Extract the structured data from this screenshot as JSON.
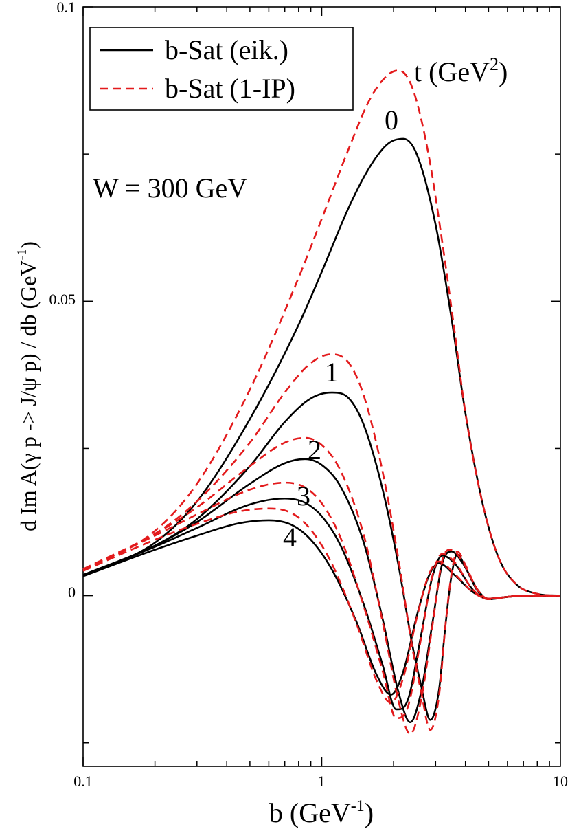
{
  "chart_data": {
    "type": "line",
    "title": "",
    "xlabel": "b  (GeV",
    "xlabel_sup": "-1",
    "xlabel_close": ")",
    "ylabel": "d Im A(γ p -> J/ψ p) / db  (GeV",
    "ylabel_sup": "-1",
    "ylabel_close": ")",
    "xscale": "log",
    "xlim": [
      0.1,
      10
    ],
    "ylim": [
      -0.029,
      0.1
    ],
    "x_ticks": [
      0.1,
      1,
      10
    ],
    "x_tick_labels": [
      "0.1",
      "1",
      "10"
    ],
    "y_ticks": [
      0,
      0.05,
      0.1
    ],
    "y_tick_labels": [
      "0",
      "0.05",
      "0.1"
    ],
    "annotation": "W = 300 GeV",
    "t_header": "t  (GeV",
    "t_header_sup": "2",
    "t_header_close": ")",
    "legend": {
      "position": "top-left",
      "entries": [
        {
          "label": "b-Sat (eik.)",
          "color": "#000000",
          "style": "solid"
        },
        {
          "label": "b-Sat (1-IP)",
          "color": "#e31a1c",
          "style": "dashed"
        }
      ]
    },
    "curve_labels": [
      "0",
      "1",
      "2",
      "3",
      "4"
    ],
    "series": [
      {
        "name": "b-Sat (eik.), t=0",
        "t": 0,
        "style": "solid",
        "color": "#000000",
        "points": [
          [
            0.1,
            0.0034
          ],
          [
            0.2,
            0.009
          ],
          [
            0.3,
            0.016
          ],
          [
            0.5,
            0.03
          ],
          [
            0.8,
            0.046
          ],
          [
            1.0,
            0.055
          ],
          [
            1.3,
            0.066
          ],
          [
            1.6,
            0.073
          ],
          [
            1.9,
            0.0768
          ],
          [
            2.2,
            0.0776
          ],
          [
            2.5,
            0.075
          ],
          [
            3.0,
            0.063
          ],
          [
            3.5,
            0.047
          ],
          [
            4.0,
            0.031
          ],
          [
            4.7,
            0.016
          ],
          [
            5.5,
            0.0065
          ],
          [
            6.5,
            0.002
          ],
          [
            8.0,
            0.0003
          ],
          [
            10,
            0.0
          ]
        ]
      },
      {
        "name": "b-Sat (1-IP), t=0",
        "t": 0,
        "style": "dashed",
        "color": "#e31a1c",
        "points": [
          [
            0.1,
            0.0042
          ],
          [
            0.2,
            0.011
          ],
          [
            0.3,
            0.019
          ],
          [
            0.5,
            0.035
          ],
          [
            0.8,
            0.054
          ],
          [
            1.0,
            0.064
          ],
          [
            1.3,
            0.076
          ],
          [
            1.6,
            0.0845
          ],
          [
            1.9,
            0.0885
          ],
          [
            2.1,
            0.0892
          ],
          [
            2.4,
            0.0862
          ],
          [
            2.8,
            0.075
          ],
          [
            3.2,
            0.06
          ],
          [
            3.6,
            0.045
          ],
          [
            4.0,
            0.031
          ],
          [
            4.7,
            0.016
          ],
          [
            5.5,
            0.0065
          ],
          [
            6.5,
            0.002
          ],
          [
            8.0,
            0.0003
          ],
          [
            10,
            0.0
          ]
        ]
      },
      {
        "name": "b-Sat (eik.), t=1",
        "t": 1,
        "style": "solid",
        "color": "#000000",
        "points": [
          [
            0.1,
            0.0035
          ],
          [
            0.2,
            0.0085
          ],
          [
            0.3,
            0.013
          ],
          [
            0.5,
            0.022
          ],
          [
            0.7,
            0.0295
          ],
          [
            0.9,
            0.0335
          ],
          [
            1.1,
            0.0345
          ],
          [
            1.3,
            0.0335
          ],
          [
            1.5,
            0.029
          ],
          [
            1.8,
            0.018
          ],
          [
            2.1,
            0.005
          ],
          [
            2.4,
            -0.0085
          ],
          [
            2.6,
            -0.015
          ],
          [
            2.85,
            -0.0211
          ],
          [
            3.1,
            -0.016
          ],
          [
            3.3,
            -0.005
          ],
          [
            3.5,
            0.0035
          ],
          [
            3.7,
            0.007
          ],
          [
            4.0,
            0.0048
          ],
          [
            4.5,
            0.0008
          ],
          [
            5.0,
            -0.0005
          ],
          [
            6.0,
            -0.0002
          ],
          [
            7.0,
            0.0
          ],
          [
            10,
            0.0
          ]
        ]
      },
      {
        "name": "b-Sat (1-IP), t=1",
        "t": 1,
        "style": "dashed",
        "color": "#e31a1c",
        "points": [
          [
            0.1,
            0.0045
          ],
          [
            0.2,
            0.0105
          ],
          [
            0.3,
            0.016
          ],
          [
            0.5,
            0.026
          ],
          [
            0.7,
            0.0345
          ],
          [
            0.9,
            0.0395
          ],
          [
            1.1,
            0.041
          ],
          [
            1.3,
            0.0395
          ],
          [
            1.5,
            0.034
          ],
          [
            1.8,
            0.021
          ],
          [
            2.1,
            0.006
          ],
          [
            2.4,
            -0.009
          ],
          [
            2.6,
            -0.016
          ],
          [
            2.85,
            -0.0228
          ],
          [
            3.1,
            -0.017
          ],
          [
            3.3,
            -0.005
          ],
          [
            3.5,
            0.0038
          ],
          [
            3.7,
            0.0075
          ],
          [
            4.0,
            0.0052
          ],
          [
            4.5,
            0.0009
          ],
          [
            5.0,
            -0.0005
          ],
          [
            6.0,
            -0.0002
          ],
          [
            7.0,
            0.0
          ],
          [
            10,
            0.0
          ]
        ]
      },
      {
        "name": "b-Sat (eik.), t=2",
        "t": 2,
        "style": "solid",
        "color": "#000000",
        "points": [
          [
            0.1,
            0.0035
          ],
          [
            0.2,
            0.0085
          ],
          [
            0.3,
            0.0125
          ],
          [
            0.5,
            0.019
          ],
          [
            0.7,
            0.0225
          ],
          [
            0.85,
            0.0232
          ],
          [
            1.0,
            0.0222
          ],
          [
            1.2,
            0.0185
          ],
          [
            1.5,
            0.009
          ],
          [
            1.8,
            -0.004
          ],
          [
            2.1,
            -0.0165
          ],
          [
            2.35,
            -0.0215
          ],
          [
            2.6,
            -0.0166
          ],
          [
            2.9,
            -0.005
          ],
          [
            3.2,
            0.0055
          ],
          [
            3.5,
            0.0075
          ],
          [
            3.9,
            0.0055
          ],
          [
            4.5,
            0.001
          ],
          [
            5.0,
            -0.0006
          ],
          [
            6.0,
            -0.0002
          ],
          [
            7.0,
            0.0
          ],
          [
            10,
            0.0
          ]
        ]
      },
      {
        "name": "b-Sat (1-IP), t=2",
        "t": 2,
        "style": "dashed",
        "color": "#e31a1c",
        "points": [
          [
            0.1,
            0.0045
          ],
          [
            0.2,
            0.0105
          ],
          [
            0.3,
            0.015
          ],
          [
            0.5,
            0.022
          ],
          [
            0.7,
            0.026
          ],
          [
            0.85,
            0.0268
          ],
          [
            1.0,
            0.0256
          ],
          [
            1.2,
            0.0212
          ],
          [
            1.5,
            0.0103
          ],
          [
            1.8,
            -0.0045
          ],
          [
            2.1,
            -0.018
          ],
          [
            2.35,
            -0.0235
          ],
          [
            2.6,
            -0.018
          ],
          [
            2.9,
            -0.0055
          ],
          [
            3.2,
            0.006
          ],
          [
            3.5,
            0.0078
          ],
          [
            3.9,
            0.0057
          ],
          [
            4.5,
            0.001
          ],
          [
            5.0,
            -0.0006
          ],
          [
            6.0,
            -0.0002
          ],
          [
            7.0,
            0.0
          ],
          [
            10,
            0.0
          ]
        ]
      },
      {
        "name": "b-Sat (eik.), t=3",
        "t": 3,
        "style": "solid",
        "color": "#000000",
        "points": [
          [
            0.1,
            0.0034
          ],
          [
            0.2,
            0.0083
          ],
          [
            0.3,
            0.0115
          ],
          [
            0.5,
            0.0155
          ],
          [
            0.7,
            0.0165
          ],
          [
            0.85,
            0.0158
          ],
          [
            1.0,
            0.0135
          ],
          [
            1.2,
            0.0085
          ],
          [
            1.5,
            -0.0015
          ],
          [
            1.8,
            -0.0118
          ],
          [
            2.05,
            -0.0193
          ],
          [
            2.3,
            -0.0176
          ],
          [
            2.6,
            -0.007
          ],
          [
            2.9,
            0.003
          ],
          [
            3.2,
            0.0068
          ],
          [
            3.6,
            0.0055
          ],
          [
            4.3,
            0.001
          ],
          [
            5.0,
            -0.0006
          ],
          [
            6.0,
            -0.0002
          ],
          [
            7.0,
            0.0
          ],
          [
            10,
            0.0
          ]
        ]
      },
      {
        "name": "b-Sat (1-IP), t=3",
        "t": 3,
        "style": "dashed",
        "color": "#e31a1c",
        "points": [
          [
            0.1,
            0.0044
          ],
          [
            0.2,
            0.0102
          ],
          [
            0.3,
            0.0138
          ],
          [
            0.5,
            0.018
          ],
          [
            0.7,
            0.0192
          ],
          [
            0.85,
            0.0184
          ],
          [
            1.0,
            0.0157
          ],
          [
            1.2,
            0.0098
          ],
          [
            1.5,
            -0.0018
          ],
          [
            1.8,
            -0.0128
          ],
          [
            2.05,
            -0.0208
          ],
          [
            2.3,
            -0.0188
          ],
          [
            2.6,
            -0.0075
          ],
          [
            2.9,
            0.0032
          ],
          [
            3.2,
            0.0071
          ],
          [
            3.6,
            0.0057
          ],
          [
            4.3,
            0.001
          ],
          [
            5.0,
            -0.0006
          ],
          [
            6.0,
            -0.0002
          ],
          [
            7.0,
            0.0
          ],
          [
            10,
            0.0
          ]
        ]
      },
      {
        "name": "b-Sat (eik.), t=4",
        "t": 4,
        "style": "solid",
        "color": "#000000",
        "points": [
          [
            0.1,
            0.0033
          ],
          [
            0.2,
            0.0078
          ],
          [
            0.3,
            0.0102
          ],
          [
            0.45,
            0.0123
          ],
          [
            0.6,
            0.0128
          ],
          [
            0.75,
            0.012
          ],
          [
            0.9,
            0.0095
          ],
          [
            1.1,
            0.0045
          ],
          [
            1.4,
            -0.0045
          ],
          [
            1.7,
            -0.0135
          ],
          [
            1.95,
            -0.0168
          ],
          [
            2.2,
            -0.0128
          ],
          [
            2.5,
            -0.0035
          ],
          [
            2.8,
            0.0032
          ],
          [
            3.1,
            0.0055
          ],
          [
            3.6,
            0.0035
          ],
          [
            4.3,
            0.0006
          ],
          [
            5.0,
            -0.0005
          ],
          [
            6.0,
            -0.0002
          ],
          [
            7.0,
            0.0
          ],
          [
            10,
            0.0
          ]
        ]
      },
      {
        "name": "b-Sat (1-IP), t=4",
        "t": 4,
        "style": "dashed",
        "color": "#e31a1c",
        "points": [
          [
            0.1,
            0.0042
          ],
          [
            0.2,
            0.0095
          ],
          [
            0.3,
            0.0122
          ],
          [
            0.45,
            0.0143
          ],
          [
            0.6,
            0.0148
          ],
          [
            0.75,
            0.014
          ],
          [
            0.9,
            0.0112
          ],
          [
            1.1,
            0.0055
          ],
          [
            1.4,
            -0.0048
          ],
          [
            1.7,
            -0.0145
          ],
          [
            1.95,
            -0.0182
          ],
          [
            2.2,
            -0.0138
          ],
          [
            2.5,
            -0.0038
          ],
          [
            2.8,
            0.0034
          ],
          [
            3.1,
            0.0058
          ],
          [
            3.6,
            0.0037
          ],
          [
            4.3,
            0.0006
          ],
          [
            5.0,
            -0.0005
          ],
          [
            6.0,
            -0.0002
          ],
          [
            7.0,
            0.0
          ],
          [
            10,
            0.0
          ]
        ]
      }
    ]
  }
}
